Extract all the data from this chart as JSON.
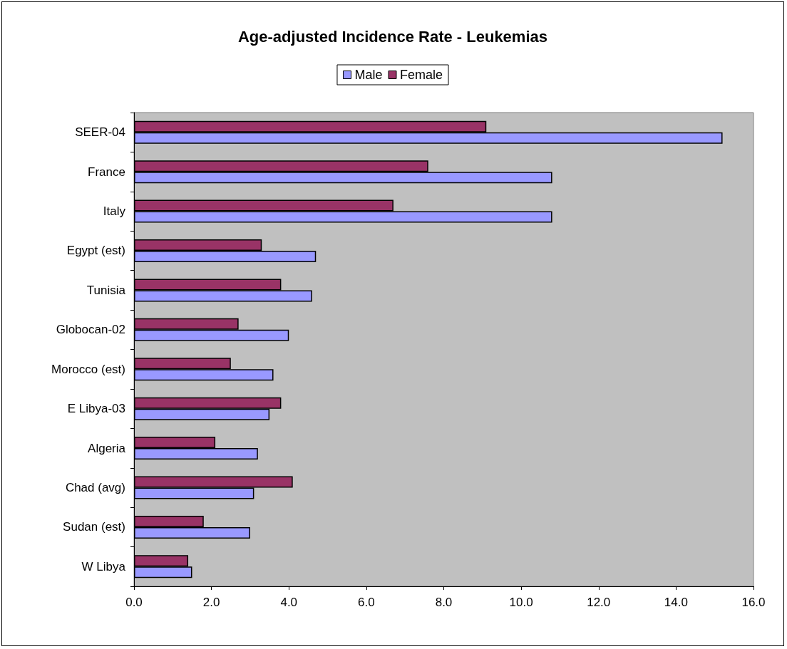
{
  "chart_data": {
    "type": "bar",
    "orientation": "horizontal",
    "title": "Age-adjusted Incidence Rate - Leukemias",
    "categories": [
      "SEER-04",
      "France",
      "Italy",
      "Egypt (est)",
      "Tunisia",
      "Globocan-02",
      "Morocco (est)",
      "E Libya-03",
      "Algeria",
      "Chad (avg)",
      "Sudan (est)",
      "W Libya"
    ],
    "series": [
      {
        "name": "Male",
        "color": "#9999ff",
        "values": [
          15.2,
          10.8,
          10.8,
          4.7,
          4.6,
          4.0,
          3.6,
          3.5,
          3.2,
          3.1,
          3.0,
          1.5
        ]
      },
      {
        "name": "Female",
        "color": "#993366",
        "values": [
          9.1,
          7.6,
          6.7,
          3.3,
          3.8,
          2.7,
          2.5,
          3.8,
          2.1,
          4.1,
          1.8,
          1.4
        ]
      }
    ],
    "xlim": [
      0,
      16
    ],
    "xticks": [
      {
        "value": 0,
        "label": "0.0"
      },
      {
        "value": 2,
        "label": "2.0"
      },
      {
        "value": 4,
        "label": "4.0"
      },
      {
        "value": 6,
        "label": "6.0"
      },
      {
        "value": 8,
        "label": "8.0"
      },
      {
        "value": 10,
        "label": "10.0"
      },
      {
        "value": 12,
        "label": "12.0"
      },
      {
        "value": 14,
        "label": "14.0"
      },
      {
        "value": 16,
        "label": "16.0"
      }
    ],
    "grid": false,
    "legend": "top"
  }
}
